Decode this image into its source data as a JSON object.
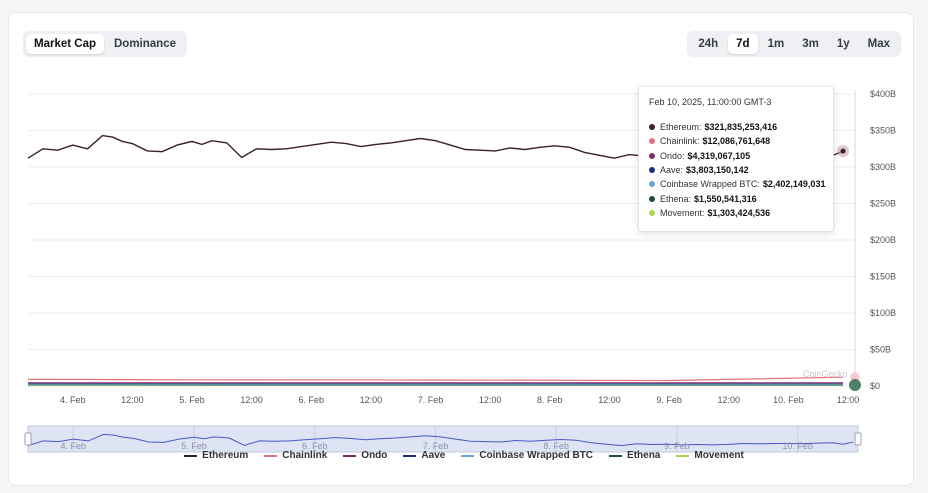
{
  "controls": {
    "metric_tabs": [
      {
        "label": "Market Cap",
        "active": true
      },
      {
        "label": "Dominance",
        "active": false
      }
    ],
    "range_tabs": [
      {
        "label": "24h",
        "active": false
      },
      {
        "label": "7d",
        "active": true
      },
      {
        "label": "1m",
        "active": false
      },
      {
        "label": "3m",
        "active": false
      },
      {
        "label": "1y",
        "active": false
      },
      {
        "label": "Max",
        "active": false
      }
    ]
  },
  "watermark": "CoinGecko",
  "tooltip": {
    "title": "Feb 10, 2025, 11:00:00 GMT-3",
    "rows": [
      {
        "name": "Ethereum",
        "value": "$321,835,253,416",
        "color": "#3b1f2b"
      },
      {
        "name": "Chainlink",
        "value": "$12,086,761,648",
        "color": "#e5707e"
      },
      {
        "name": "Ondo",
        "value": "$4,319,067,105",
        "color": "#7a2f6b"
      },
      {
        "name": "Aave",
        "value": "$3,803,150,142",
        "color": "#1f2f7a"
      },
      {
        "name": "Coinbase Wrapped BTC",
        "value": "$2,402,149,031",
        "color": "#6aa5d9"
      },
      {
        "name": "Ethena",
        "value": "$1,550,541,316",
        "color": "#1f4d3d"
      },
      {
        "name": "Movement",
        "value": "$1,303,424,536",
        "color": "#a8d84a"
      }
    ]
  },
  "chart_data": {
    "type": "line",
    "y_unit": "USD",
    "ylim": [
      0,
      400000000000
    ],
    "y_ticks": [
      {
        "value": 0,
        "label": "$0"
      },
      {
        "value": 50000000000,
        "label": "$50B"
      },
      {
        "value": 100000000000,
        "label": "$100B"
      },
      {
        "value": 150000000000,
        "label": "$150B"
      },
      {
        "value": 200000000000,
        "label": "$200B"
      },
      {
        "value": 250000000000,
        "label": "$250B"
      },
      {
        "value": 300000000000,
        "label": "$300B"
      },
      {
        "value": 350000000000,
        "label": "$350B"
      },
      {
        "value": 400000000000,
        "label": "$400B"
      }
    ],
    "x_start": "2025-02-03T15:00",
    "x_end": "2025-02-10T12:00",
    "x_ticks": [
      {
        "x": "2025-02-04T00:00",
        "label": "4. Feb"
      },
      {
        "x": "2025-02-04T12:00",
        "label": "12:00"
      },
      {
        "x": "2025-02-05T00:00",
        "label": "5. Feb"
      },
      {
        "x": "2025-02-05T12:00",
        "label": "12:00"
      },
      {
        "x": "2025-02-06T00:00",
        "label": "6. Feb"
      },
      {
        "x": "2025-02-06T12:00",
        "label": "12:00"
      },
      {
        "x": "2025-02-07T00:00",
        "label": "7. Feb"
      },
      {
        "x": "2025-02-07T12:00",
        "label": "12:00"
      },
      {
        "x": "2025-02-08T00:00",
        "label": "8. Feb"
      },
      {
        "x": "2025-02-08T12:00",
        "label": "12:00"
      },
      {
        "x": "2025-02-09T00:00",
        "label": "9. Feb"
      },
      {
        "x": "2025-02-09T12:00",
        "label": "12:00"
      },
      {
        "x": "2025-02-10T00:00",
        "label": "10. Feb"
      },
      {
        "x": "2025-02-10T12:00",
        "label": "12:00"
      }
    ],
    "navigator_ticks": [
      {
        "x": "2025-02-04T00:00",
        "label": "4. Feb"
      },
      {
        "x": "2025-02-05T00:00",
        "label": "5. Feb"
      },
      {
        "x": "2025-02-06T00:00",
        "label": "6. Feb"
      },
      {
        "x": "2025-02-07T00:00",
        "label": "7. Feb"
      },
      {
        "x": "2025-02-08T00:00",
        "label": "8. Feb"
      },
      {
        "x": "2025-02-09T00:00",
        "label": "9. Feb"
      },
      {
        "x": "2025-02-10T00:00",
        "label": "10. Feb"
      }
    ],
    "series": [
      {
        "name": "Ethereum",
        "color": "#3b1f2b",
        "points": [
          [
            "2025-02-03T15:00",
            312
          ],
          [
            "2025-02-03T18:00",
            325
          ],
          [
            "2025-02-03T21:00",
            323
          ],
          [
            "2025-02-04T00:00",
            330
          ],
          [
            "2025-02-04T03:00",
            325
          ],
          [
            "2025-02-04T06:00",
            343
          ],
          [
            "2025-02-04T08:00",
            341
          ],
          [
            "2025-02-04T10:00",
            335
          ],
          [
            "2025-02-04T12:00",
            332
          ],
          [
            "2025-02-04T15:00",
            322
          ],
          [
            "2025-02-04T18:00",
            321
          ],
          [
            "2025-02-04T21:00",
            330
          ],
          [
            "2025-02-05T00:00",
            335
          ],
          [
            "2025-02-05T02:00",
            331
          ],
          [
            "2025-02-05T04:00",
            336
          ],
          [
            "2025-02-05T07:00",
            333
          ],
          [
            "2025-02-05T10:00",
            313
          ],
          [
            "2025-02-05T13:00",
            325
          ],
          [
            "2025-02-05T16:00",
            324
          ],
          [
            "2025-02-05T19:00",
            325
          ],
          [
            "2025-02-05T22:00",
            328
          ],
          [
            "2025-02-06T01:00",
            331
          ],
          [
            "2025-02-06T04:00",
            334
          ],
          [
            "2025-02-06T07:00",
            332
          ],
          [
            "2025-02-06T10:00",
            328
          ],
          [
            "2025-02-06T13:00",
            331
          ],
          [
            "2025-02-06T16:00",
            333
          ],
          [
            "2025-02-06T19:00",
            336
          ],
          [
            "2025-02-06T22:00",
            339
          ],
          [
            "2025-02-07T01:00",
            336
          ],
          [
            "2025-02-07T04:00",
            330
          ],
          [
            "2025-02-07T07:00",
            324
          ],
          [
            "2025-02-07T10:00",
            323
          ],
          [
            "2025-02-07T13:00",
            322
          ],
          [
            "2025-02-07T16:00",
            326
          ],
          [
            "2025-02-07T19:00",
            324
          ],
          [
            "2025-02-07T22:00",
            327
          ],
          [
            "2025-02-08T01:00",
            329
          ],
          [
            "2025-02-08T04:00",
            327
          ],
          [
            "2025-02-08T07:00",
            320
          ],
          [
            "2025-02-08T10:00",
            316
          ],
          [
            "2025-02-08T13:00",
            312
          ],
          [
            "2025-02-08T16:00",
            317
          ],
          [
            "2025-02-08T19:00",
            315
          ],
          [
            "2025-02-08T22:00",
            316
          ],
          [
            "2025-02-09T01:00",
            314
          ],
          [
            "2025-02-09T04:00",
            315
          ],
          [
            "2025-02-09T07:00",
            314
          ],
          [
            "2025-02-09T10:00",
            315
          ],
          [
            "2025-02-09T13:00",
            318
          ],
          [
            "2025-02-09T16:00",
            317
          ],
          [
            "2025-02-09T19:00",
            318
          ],
          [
            "2025-02-09T22:00",
            318
          ],
          [
            "2025-02-10T01:00",
            317
          ],
          [
            "2025-02-10T04:00",
            319
          ],
          [
            "2025-02-10T07:00",
            320
          ],
          [
            "2025-02-10T09:00",
            316
          ],
          [
            "2025-02-10T11:00",
            321.8
          ]
        ]
      },
      {
        "name": "Chainlink",
        "color": "#e5707e",
        "points": [
          [
            "2025-02-03T15:00",
            9
          ],
          [
            "2025-02-05T00:00",
            8.5
          ],
          [
            "2025-02-07T00:00",
            8.2
          ],
          [
            "2025-02-09T00:00",
            7.5
          ],
          [
            "2025-02-10T11:00",
            12.1
          ]
        ]
      },
      {
        "name": "Ondo",
        "color": "#7a2f6b",
        "points": [
          [
            "2025-02-03T15:00",
            4.4
          ],
          [
            "2025-02-06T00:00",
            4.3
          ],
          [
            "2025-02-10T11:00",
            4.3
          ]
        ]
      },
      {
        "name": "Aave",
        "color": "#1f2f7a",
        "points": [
          [
            "2025-02-03T15:00",
            3.8
          ],
          [
            "2025-02-06T00:00",
            3.9
          ],
          [
            "2025-02-10T11:00",
            3.8
          ]
        ]
      },
      {
        "name": "Coinbase Wrapped BTC",
        "color": "#6aa5d9",
        "points": [
          [
            "2025-02-03T15:00",
            2.4
          ],
          [
            "2025-02-06T00:00",
            2.4
          ],
          [
            "2025-02-10T11:00",
            2.4
          ]
        ]
      },
      {
        "name": "Ethena",
        "color": "#1f4d3d",
        "points": [
          [
            "2025-02-03T15:00",
            1.6
          ],
          [
            "2025-02-06T00:00",
            1.5
          ],
          [
            "2025-02-10T11:00",
            1.55
          ]
        ]
      },
      {
        "name": "Movement",
        "color": "#a8d84a",
        "points": [
          [
            "2025-02-03T15:00",
            1.3
          ],
          [
            "2025-02-06T00:00",
            1.3
          ],
          [
            "2025-02-10T11:00",
            1.3
          ]
        ]
      }
    ],
    "series_value_unit": "billion USD",
    "legend_position": "bottom"
  }
}
